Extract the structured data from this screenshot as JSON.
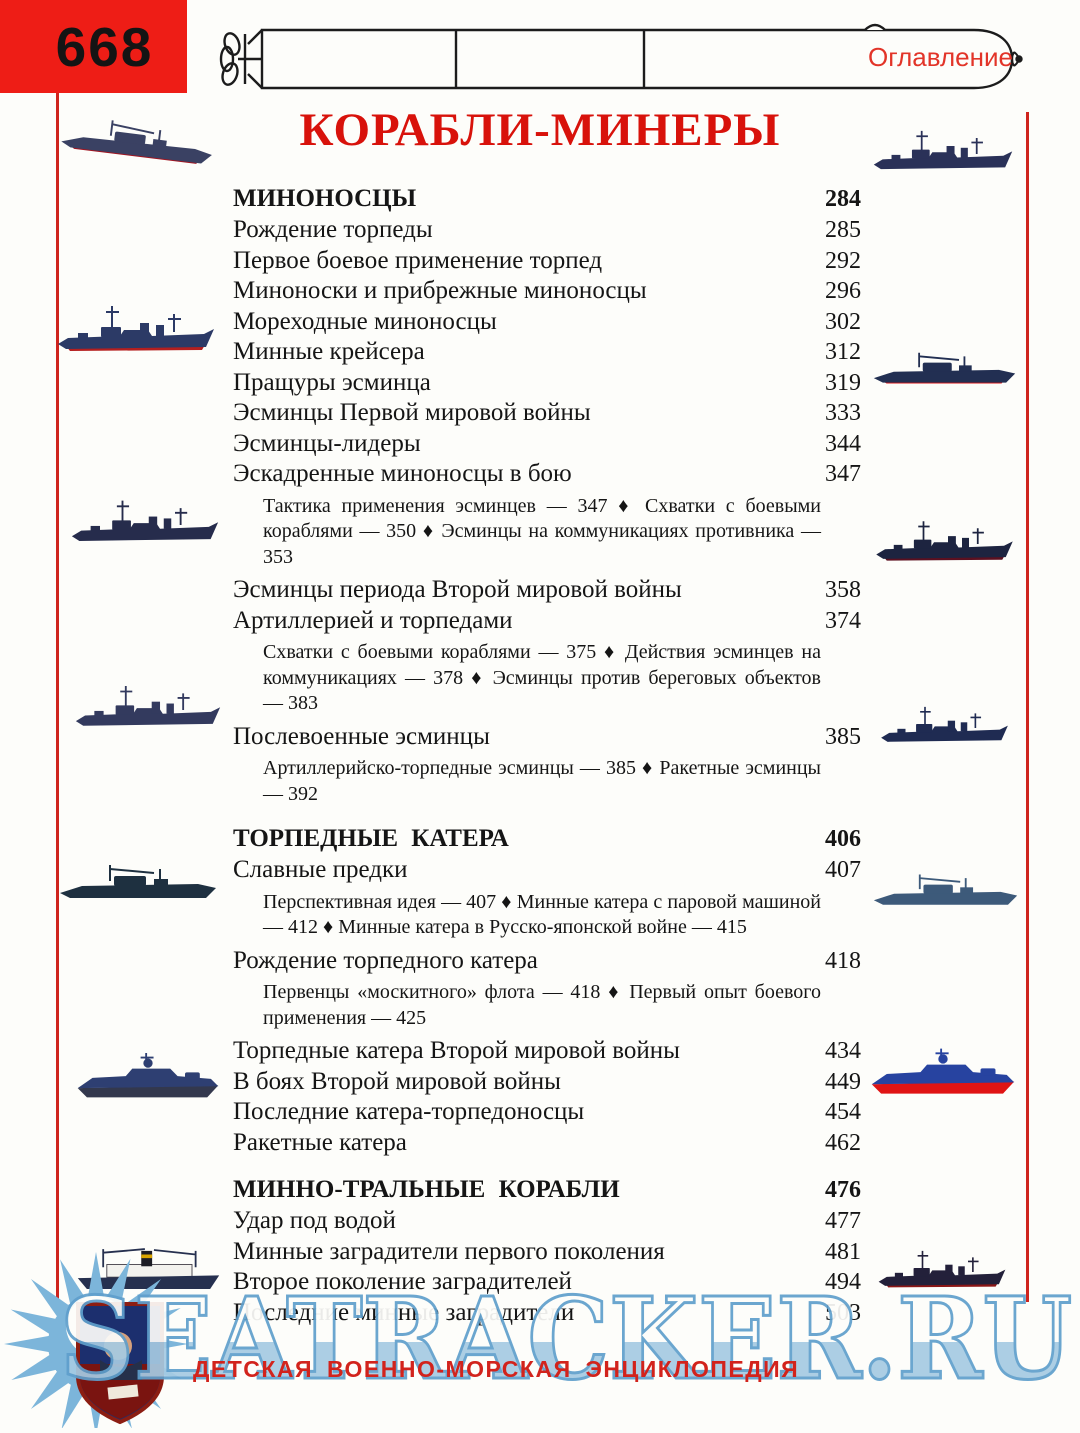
{
  "page": {
    "number": "668",
    "corner_label": "Оглавление",
    "title": "КОРАБЛИ-МИНЕРЫ"
  },
  "toc": {
    "entries": [
      {
        "type": "section",
        "label": "МИНОНОСЦЫ",
        "page": "284"
      },
      {
        "type": "entry",
        "label": "Рождение торпеды",
        "page": "285"
      },
      {
        "type": "entry",
        "label": "Первое боевое применение торпед",
        "page": "292"
      },
      {
        "type": "entry",
        "label": "Миноноски и прибрежные миноносцы",
        "page": "296"
      },
      {
        "type": "entry",
        "label": "Мореходные миноносцы",
        "page": "302"
      },
      {
        "type": "entry",
        "label": "Минные крейсера",
        "page": "312"
      },
      {
        "type": "entry",
        "label": "Пращуры эсминца",
        "page": "319"
      },
      {
        "type": "entry",
        "label": "Эсминцы Первой мировой войны",
        "page": "333"
      },
      {
        "type": "entry",
        "label": "Эсминцы-лидеры",
        "page": "344"
      },
      {
        "type": "entry",
        "label": "Эскадренные миноносцы в бою",
        "page": "347"
      },
      {
        "type": "sub",
        "label": "Тактика применения эсминцев — 347 ♦ Схватки с боевыми кораблями — 350 ♦ Эсминцы на коммуникациях противника — 353"
      },
      {
        "type": "entry",
        "label": "Эсминцы периода Второй мировой войны",
        "page": "358"
      },
      {
        "type": "entry",
        "label": "Артиллерией и торпедами",
        "page": "374"
      },
      {
        "type": "sub",
        "label": "Схватки с боевыми кораблями — 375 ♦ Действия эсминцев на коммуникациях — 378 ♦ Эсминцы против береговых объектов — 383"
      },
      {
        "type": "entry",
        "label": "Послевоенные эсминцы",
        "page": "385"
      },
      {
        "type": "sub",
        "label": "Артиллерийско-торпедные эсминцы — 385 ♦ Ракетные эсминцы — 392"
      },
      {
        "type": "section",
        "label": "ТОРПЕДНЫЕ КАТЕРА",
        "page": "406"
      },
      {
        "type": "entry",
        "label": "Славные предки",
        "page": "407"
      },
      {
        "type": "sub",
        "label": "Перспективная идея — 407 ♦ Минные катера с паровой машиной — 412 ♦ Минные катера в Русско-японской войне — 415"
      },
      {
        "type": "entry",
        "label": "Рождение торпедного катера",
        "page": "418"
      },
      {
        "type": "sub",
        "label": "Первенцы «москитного» флота — 418 ♦ Первый опыт боевого применения — 425"
      },
      {
        "type": "entry",
        "label": "Торпедные катера Второй мировой войны",
        "page": "434"
      },
      {
        "type": "entry",
        "label": "В боях Второй мировой войны",
        "page": "449"
      },
      {
        "type": "entry",
        "label": "Последние катера-торпедоносцы",
        "page": "454"
      },
      {
        "type": "entry",
        "label": "Ракетные катера",
        "page": "462"
      },
      {
        "type": "section",
        "label": "МИННО-ТРАЛЬНЫЕ КОРАБЛИ",
        "page": "476"
      },
      {
        "type": "entry",
        "label": "Удар под водой",
        "page": "477"
      },
      {
        "type": "entry",
        "label": "Минные заградители первого поколения",
        "page": "481"
      },
      {
        "type": "entry",
        "label": "Второе поколение заградителей",
        "page": "494"
      },
      {
        "type": "entry",
        "label": "Последние минные заградители",
        "page": "503"
      }
    ]
  },
  "footer": {
    "watermark": "SEATRACKER.RU",
    "imprint": "ДЕТСКАЯ ВОЕННО-МОРСКАЯ ЭНЦИКЛОПЕДИЯ"
  },
  "decor": {
    "header_drawing": "torpedo-line-drawing",
    "margin_illustrations": "warship-silhouettes",
    "emblem": "sunburst-shield-logo",
    "colors": {
      "accent_red": "#ee1d16",
      "title_red": "#d8120b",
      "watermark_blue": "#7cb5da"
    }
  }
}
